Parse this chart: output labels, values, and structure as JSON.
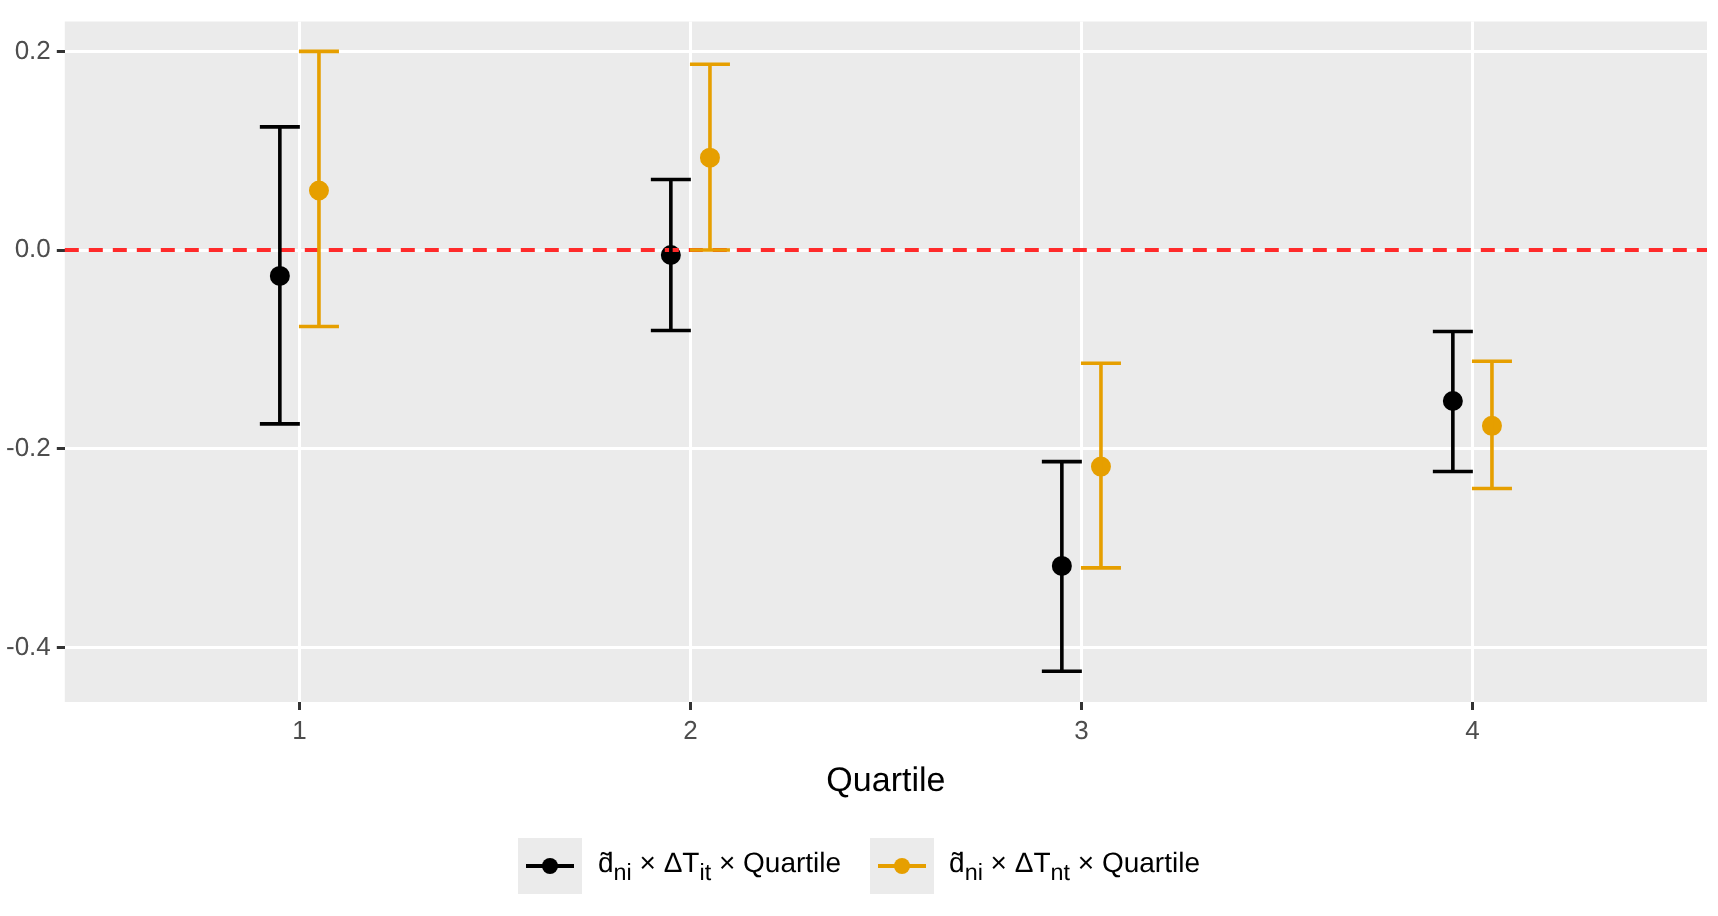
{
  "chart_data": {
    "type": "scatter",
    "xlabel": "Quartile",
    "categories": [
      "1",
      "2",
      "3",
      "4"
    ],
    "series": [
      {
        "name": "d̃$_{ni}$ × ΔT$_{it}$ × Quartile",
        "color": "#000000",
        "values": [
          -0.026,
          -0.005,
          -0.318,
          -0.152
        ],
        "errors": [
          [
            -0.175,
            0.124
          ],
          [
            -0.081,
            0.071
          ],
          [
            -0.424,
            -0.213
          ],
          [
            -0.223,
            -0.082
          ]
        ]
      },
      {
        "name": "d̃$_{ni}$ × ΔT$_{nt}$ × Quartile",
        "color": "#e69f00",
        "values": [
          0.06,
          0.093,
          -0.218,
          -0.177
        ],
        "errors": [
          [
            -0.077,
            0.2
          ],
          [
            0,
            0.187
          ],
          [
            -0.32,
            -0.114
          ],
          [
            -0.24,
            -0.112
          ]
        ]
      }
    ],
    "ylim": [
      -0.455,
      0.23
    ],
    "yticks": [
      {
        "value": 0.2,
        "label": "0.2"
      },
      {
        "value": 0,
        "label": "0.0"
      },
      {
        "value": -0.2,
        "label": "-0.2"
      },
      {
        "value": -0.4,
        "label": "-0.4"
      }
    ],
    "ref_lines": [
      {
        "axis": "y",
        "value": 0,
        "color": "#ff2a2a",
        "line_style": "dashed"
      }
    ],
    "grid": true,
    "legend": "bottom",
    "marker": "circle"
  }
}
